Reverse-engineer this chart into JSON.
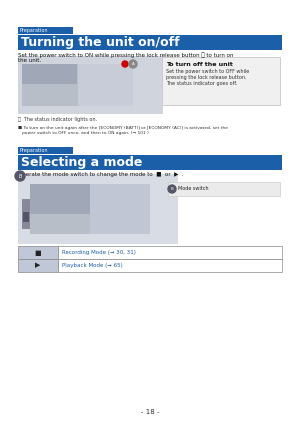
{
  "page_bg": "#ffffff",
  "header_bg": "#2060a0",
  "header_text_color": "#ffffff",
  "prep_label_bg": "#2060a0",
  "prep_label_color": "#ffffff",
  "prep_label_text": "Preparation",
  "section1_title": "Turning the unit on/off",
  "section1_body": "Set the power switch to ON while pressing the lock release button Ⓐ to turn on\nthe unit.",
  "section1_note_a": "Ⓐ  The status indicator lights on.",
  "section1_bullet": "■ To turn on the unit again after the [ECONOMY (BATT)] or [ECONOMY (AC)] is activated, set the\n   power switch to OFF once, and then to ON again. (➞ 101 )",
  "turn_off_title": "To turn off the unit",
  "turn_off_body": "Set the power switch to OFF while\npressing the lock release button.\nThe status indicator goes off.",
  "section2_prep_text": "Preparation",
  "section2_title": "Selecting a mode",
  "section2_body": "Operate the mode switch to change the mode to  ■  or  ▶  .",
  "mode_switch_label": "Ⓐ Mode switch",
  "table_row1_icon": "■",
  "table_row1_text": "Recording Mode (➞ 30, 31)",
  "table_row2_icon": "▶",
  "table_row2_text": "Playback Mode (➞ 65)",
  "table_icon_bg": "#c0c8d8",
  "table_row_bg": "#ffffff",
  "table_border": "#888888",
  "footer_text": "- 18 -",
  "camera_color": "#b0b8c8",
  "note_bg": "#e8e8e8",
  "blue_color": "#1a5fa8",
  "red_color": "#cc0000"
}
